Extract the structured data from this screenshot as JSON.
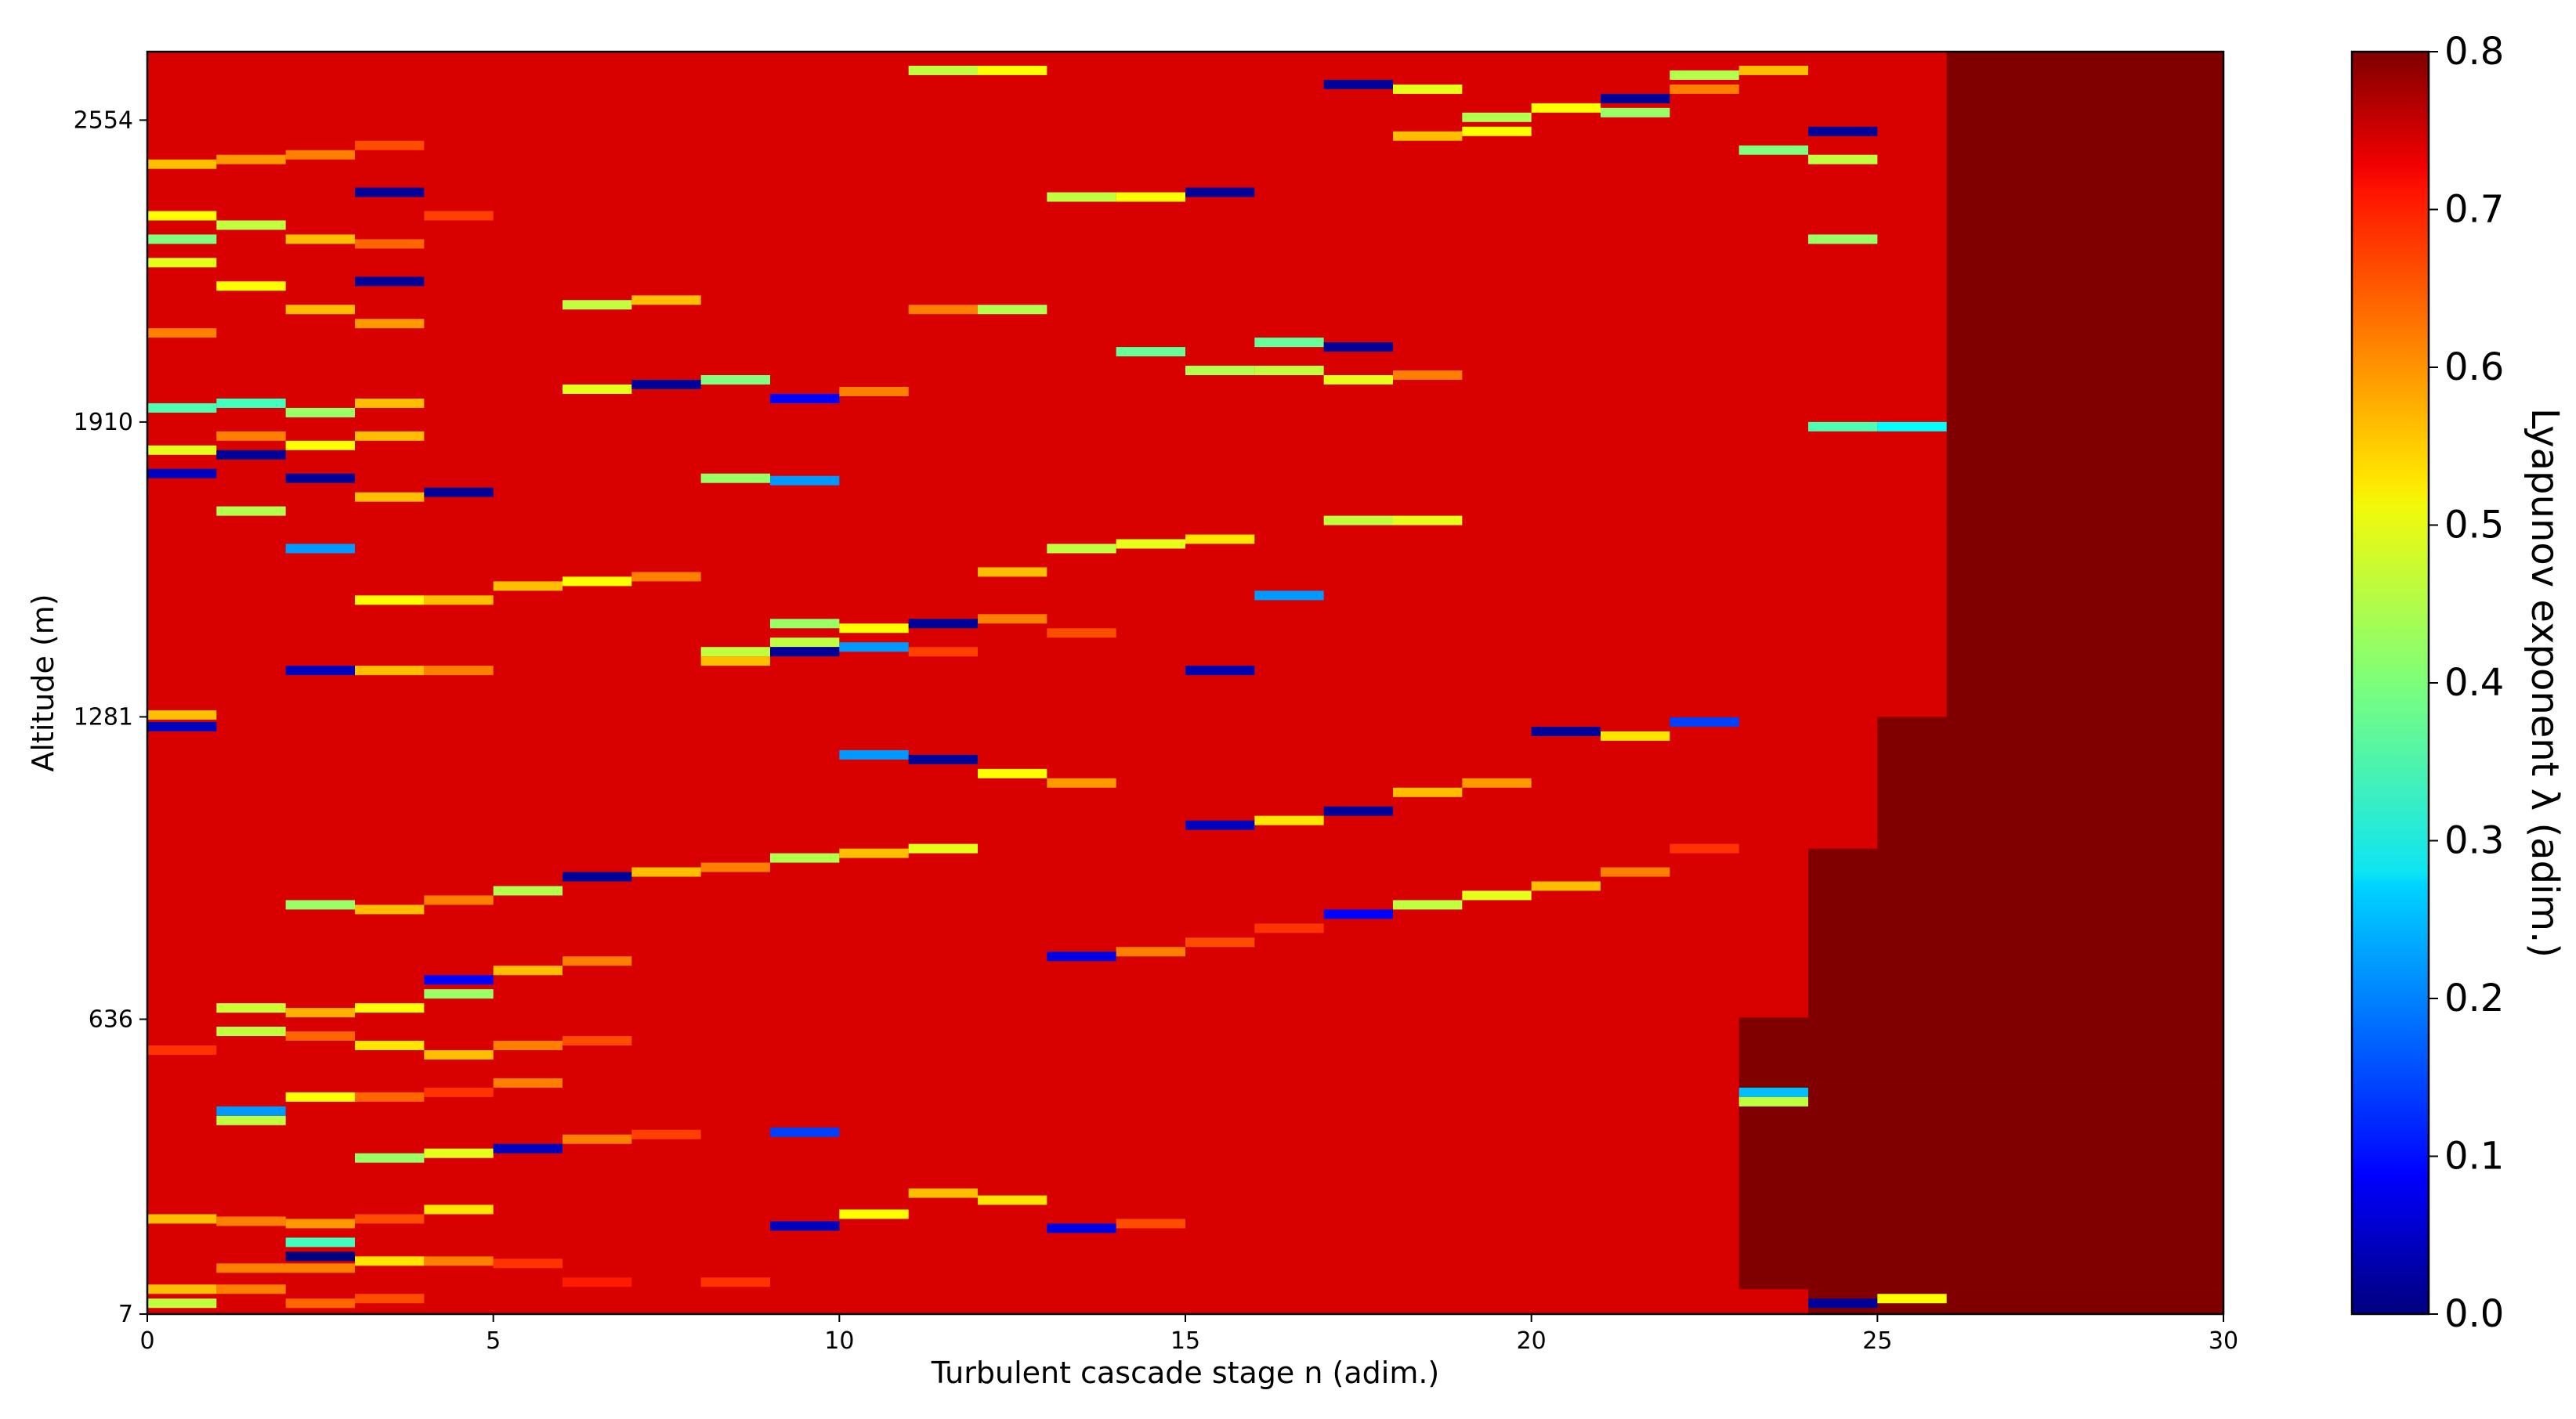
{
  "chart_data": {
    "type": "heatmap",
    "title": "",
    "xlabel": "Turbulent cascade stage n (adim.)",
    "ylabel": "Altitude (m)",
    "xlim": [
      0,
      30
    ],
    "ylim": [
      7,
      2700
    ],
    "x_ticks": [
      0,
      5,
      10,
      15,
      20,
      25,
      30
    ],
    "y_ticks": [
      7,
      636,
      1281,
      1910,
      2554
    ],
    "colormap": "jet",
    "colorbar": {
      "label": "Lyapunov exponent λ (adim.)",
      "range": [
        0.0,
        0.8
      ],
      "ticks": [
        "0.0",
        "0.1",
        "0.2",
        "0.3",
        "0.4",
        "0.5",
        "0.6",
        "0.7",
        "0.8"
      ],
      "position": "right"
    },
    "background_value": 0.73,
    "saturated_value": 0.8,
    "saturated_region_start_n": [
      [
        7,
        60,
        24
      ],
      [
        60,
        500,
        23
      ],
      [
        500,
        640,
        23
      ],
      [
        640,
        1000,
        24
      ],
      [
        1000,
        1281,
        25
      ],
      [
        1281,
        1700,
        26
      ],
      [
        1700,
        2700,
        26
      ]
    ],
    "cells": [
      [
        0,
        1,
        30,
        0.45
      ],
      [
        0,
        1,
        60,
        0.55
      ],
      [
        1,
        2,
        60,
        0.6
      ],
      [
        2,
        3,
        30,
        0.62
      ],
      [
        3,
        4,
        40,
        0.64
      ],
      [
        6,
        7,
        75,
        0.68
      ],
      [
        8,
        9,
        75,
        0.66
      ],
      [
        1,
        3,
        105,
        0.6
      ],
      [
        2,
        3,
        130,
        0.0
      ],
      [
        2,
        3,
        160,
        0.35
      ],
      [
        3,
        4,
        120,
        0.52
      ],
      [
        4,
        5,
        120,
        0.6
      ],
      [
        5,
        6,
        115,
        0.66
      ],
      [
        0,
        1,
        210,
        0.55
      ],
      [
        1,
        2,
        205,
        0.6
      ],
      [
        2,
        3,
        200,
        0.58
      ],
      [
        3,
        4,
        210,
        0.64
      ],
      [
        4,
        5,
        230,
        0.52
      ],
      [
        9,
        10,
        195,
        0.05
      ],
      [
        10,
        11,
        220,
        0.5
      ],
      [
        11,
        12,
        265,
        0.55
      ],
      [
        12,
        13,
        250,
        0.52
      ],
      [
        13,
        14,
        190,
        0.08
      ],
      [
        14,
        15,
        200,
        0.64
      ],
      [
        3,
        4,
        340,
        0.42
      ],
      [
        4,
        5,
        350,
        0.48
      ],
      [
        5,
        6,
        360,
        0.05
      ],
      [
        6,
        7,
        380,
        0.6
      ],
      [
        7,
        8,
        390,
        0.65
      ],
      [
        9,
        10,
        395,
        0.15
      ],
      [
        1,
        2,
        420,
        0.45
      ],
      [
        1,
        2,
        440,
        0.22
      ],
      [
        2,
        3,
        470,
        0.5
      ],
      [
        3,
        4,
        470,
        0.62
      ],
      [
        4,
        5,
        480,
        0.66
      ],
      [
        5,
        6,
        500,
        0.6
      ],
      [
        0,
        1,
        570,
        0.66
      ],
      [
        1,
        2,
        610,
        0.45
      ],
      [
        2,
        3,
        600,
        0.62
      ],
      [
        3,
        4,
        580,
        0.52
      ],
      [
        4,
        5,
        560,
        0.55
      ],
      [
        5,
        6,
        580,
        0.6
      ],
      [
        6,
        7,
        590,
        0.64
      ],
      [
        1,
        2,
        660,
        0.46
      ],
      [
        2,
        3,
        650,
        0.56
      ],
      [
        3,
        4,
        660,
        0.5
      ],
      [
        4,
        5,
        690,
        0.42
      ],
      [
        4,
        5,
        720,
        0.1
      ],
      [
        5,
        6,
        740,
        0.55
      ],
      [
        6,
        7,
        760,
        0.6
      ],
      [
        2,
        3,
        880,
        0.42
      ],
      [
        3,
        4,
        870,
        0.55
      ],
      [
        4,
        5,
        890,
        0.6
      ],
      [
        5,
        6,
        910,
        0.44
      ],
      [
        6,
        7,
        940,
        0.02
      ],
      [
        7,
        8,
        950,
        0.55
      ],
      [
        8,
        9,
        960,
        0.6
      ],
      [
        9,
        10,
        980,
        0.44
      ],
      [
        10,
        11,
        990,
        0.55
      ],
      [
        11,
        12,
        1000,
        0.48
      ],
      [
        13,
        14,
        770,
        0.08
      ],
      [
        14,
        15,
        780,
        0.6
      ],
      [
        15,
        16,
        800,
        0.64
      ],
      [
        16,
        17,
        830,
        0.66
      ],
      [
        17,
        18,
        860,
        0.1
      ],
      [
        18,
        19,
        880,
        0.45
      ],
      [
        19,
        20,
        900,
        0.48
      ],
      [
        20,
        21,
        920,
        0.55
      ],
      [
        21,
        22,
        950,
        0.6
      ],
      [
        22,
        23,
        1000,
        0.66
      ],
      [
        15,
        16,
        1050,
        0.05
      ],
      [
        16,
        17,
        1060,
        0.52
      ],
      [
        17,
        18,
        1080,
        0.02
      ],
      [
        18,
        19,
        1120,
        0.55
      ],
      [
        19,
        20,
        1140,
        0.58
      ],
      [
        12,
        13,
        1160,
        0.5
      ],
      [
        13,
        14,
        1140,
        0.58
      ],
      [
        10,
        11,
        1200,
        0.22
      ],
      [
        11,
        12,
        1190,
        0.02
      ],
      [
        20,
        21,
        1250,
        0.02
      ],
      [
        21,
        22,
        1240,
        0.52
      ],
      [
        22,
        23,
        1270,
        0.15
      ],
      [
        0,
        1,
        1260,
        0.05
      ],
      [
        0,
        1,
        1285,
        0.55
      ],
      [
        2,
        3,
        1380,
        0.05
      ],
      [
        3,
        4,
        1380,
        0.55
      ],
      [
        4,
        5,
        1380,
        0.6
      ],
      [
        9,
        10,
        1440,
        0.45
      ],
      [
        9,
        10,
        1480,
        0.42
      ],
      [
        10,
        11,
        1470,
        0.5
      ],
      [
        11,
        12,
        1480,
        0.02
      ],
      [
        12,
        13,
        1490,
        0.6
      ],
      [
        13,
        14,
        1460,
        0.64
      ],
      [
        8,
        9,
        1420,
        0.45
      ],
      [
        8,
        9,
        1400,
        0.55
      ],
      [
        9,
        10,
        1420,
        0.02
      ],
      [
        10,
        11,
        1430,
        0.22
      ],
      [
        11,
        12,
        1420,
        0.65
      ],
      [
        15,
        16,
        1380,
        0.04
      ],
      [
        3,
        4,
        1530,
        0.5
      ],
      [
        4,
        5,
        1530,
        0.55
      ],
      [
        5,
        6,
        1560,
        0.55
      ],
      [
        6,
        7,
        1570,
        0.5
      ],
      [
        7,
        8,
        1580,
        0.6
      ],
      [
        12,
        13,
        1590,
        0.55
      ],
      [
        13,
        14,
        1640,
        0.45
      ],
      [
        14,
        15,
        1650,
        0.48
      ],
      [
        15,
        16,
        1660,
        0.52
      ],
      [
        16,
        17,
        1540,
        0.22
      ],
      [
        17,
        18,
        1700,
        0.45
      ],
      [
        18,
        19,
        1700,
        0.48
      ],
      [
        1,
        2,
        1720,
        0.44
      ],
      [
        2,
        3,
        1640,
        0.22
      ],
      [
        3,
        4,
        1750,
        0.55
      ],
      [
        4,
        5,
        1760,
        0.02
      ],
      [
        8,
        9,
        1790,
        0.42
      ],
      [
        9,
        10,
        1785,
        0.22
      ],
      [
        0,
        1,
        1800,
        0.05
      ],
      [
        0,
        1,
        1850,
        0.48
      ],
      [
        1,
        2,
        1840,
        0.02
      ],
      [
        1,
        2,
        1880,
        0.6
      ],
      [
        2,
        3,
        1860,
        0.5
      ],
      [
        2,
        3,
        1790,
        0.02
      ],
      [
        3,
        4,
        1880,
        0.55
      ],
      [
        0,
        1,
        1940,
        0.36
      ],
      [
        1,
        2,
        1950,
        0.35
      ],
      [
        2,
        3,
        1930,
        0.42
      ],
      [
        3,
        4,
        1950,
        0.55
      ],
      [
        6,
        7,
        1980,
        0.48
      ],
      [
        7,
        8,
        1990,
        0.02
      ],
      [
        8,
        9,
        2000,
        0.4
      ],
      [
        9,
        10,
        1960,
        0.1
      ],
      [
        10,
        11,
        1975,
        0.6
      ],
      [
        16,
        17,
        2020,
        0.45
      ],
      [
        17,
        18,
        2000,
        0.48
      ],
      [
        0,
        1,
        2100,
        0.6
      ],
      [
        0,
        1,
        2250,
        0.48
      ],
      [
        1,
        2,
        2200,
        0.5
      ],
      [
        2,
        3,
        2150,
        0.55
      ],
      [
        3,
        4,
        2120,
        0.58
      ],
      [
        3,
        4,
        2210,
        0.02
      ],
      [
        6,
        7,
        2160,
        0.45
      ],
      [
        7,
        8,
        2170,
        0.55
      ],
      [
        11,
        12,
        2150,
        0.6
      ],
      [
        12,
        13,
        2150,
        0.44
      ],
      [
        14,
        15,
        2060,
        0.38
      ],
      [
        15,
        16,
        2020,
        0.44
      ],
      [
        16,
        17,
        2080,
        0.38
      ],
      [
        17,
        18,
        2070,
        0.02
      ],
      [
        18,
        19,
        2010,
        0.6
      ],
      [
        0,
        1,
        2300,
        0.4
      ],
      [
        0,
        1,
        2350,
        0.5
      ],
      [
        1,
        2,
        2330,
        0.45
      ],
      [
        2,
        3,
        2300,
        0.55
      ],
      [
        3,
        4,
        2290,
        0.62
      ],
      [
        3,
        4,
        2400,
        0.02
      ],
      [
        4,
        5,
        2350,
        0.65
      ],
      [
        13,
        14,
        2390,
        0.45
      ],
      [
        14,
        15,
        2390,
        0.5
      ],
      [
        15,
        16,
        2400,
        0.02
      ],
      [
        0,
        1,
        2460,
        0.55
      ],
      [
        1,
        2,
        2470,
        0.58
      ],
      [
        2,
        3,
        2480,
        0.6
      ],
      [
        3,
        4,
        2500,
        0.64
      ],
      [
        17,
        18,
        2630,
        0.02
      ],
      [
        18,
        19,
        2620,
        0.48
      ],
      [
        19,
        20,
        2560,
        0.44
      ],
      [
        20,
        21,
        2580,
        0.5
      ],
      [
        21,
        22,
        2570,
        0.42
      ],
      [
        21,
        22,
        2600,
        0.02
      ],
      [
        22,
        23,
        2620,
        0.6
      ],
      [
        23,
        24,
        2660,
        0.55
      ],
      [
        22,
        23,
        2650,
        0.44
      ],
      [
        23,
        24,
        2490,
        0.4
      ],
      [
        24,
        25,
        2470,
        0.45
      ],
      [
        24,
        25,
        2300,
        0.42
      ],
      [
        11,
        12,
        2660,
        0.45
      ],
      [
        12,
        13,
        2660,
        0.5
      ],
      [
        18,
        19,
        2520,
        0.55
      ],
      [
        19,
        20,
        2530,
        0.5
      ],
      [
        23,
        24,
        480,
        0.25
      ],
      [
        23,
        24,
        460,
        0.45
      ],
      [
        24,
        25,
        30,
        0.02
      ],
      [
        25,
        26,
        40,
        0.5
      ],
      [
        24,
        25,
        2530,
        0.02
      ],
      [
        24,
        25,
        1900,
        0.36
      ],
      [
        25,
        26,
        1900,
        0.3
      ]
    ]
  }
}
